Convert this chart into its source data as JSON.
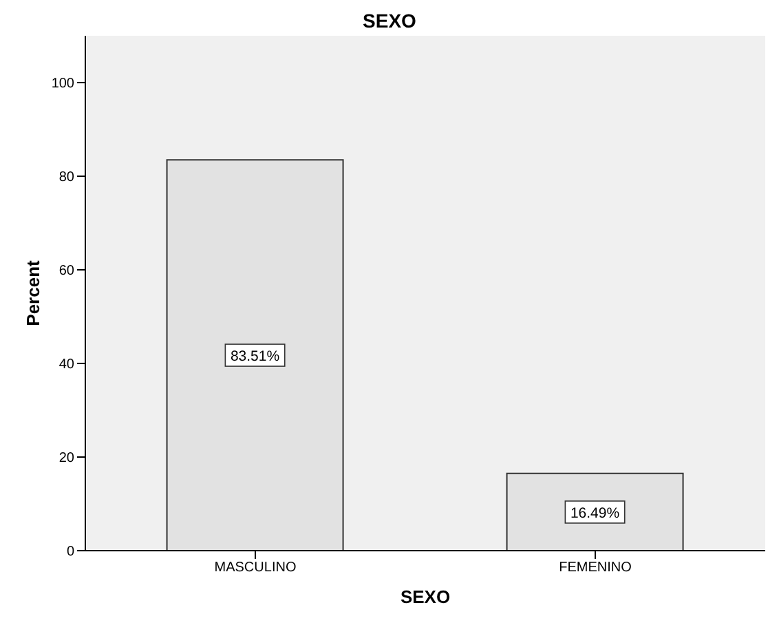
{
  "chart_data": {
    "type": "bar",
    "title": "SEXO",
    "xlabel": "SEXO",
    "ylabel": "Percent",
    "categories": [
      "MASCULINO",
      "FEMENINO"
    ],
    "values": [
      83.51,
      16.49
    ],
    "value_labels": [
      "83.51%",
      "16.49%"
    ],
    "color": "#e2e2e2",
    "ylim": [
      0,
      110
    ],
    "yticks": [
      0,
      20,
      40,
      60,
      80,
      100
    ],
    "grid": false
  }
}
